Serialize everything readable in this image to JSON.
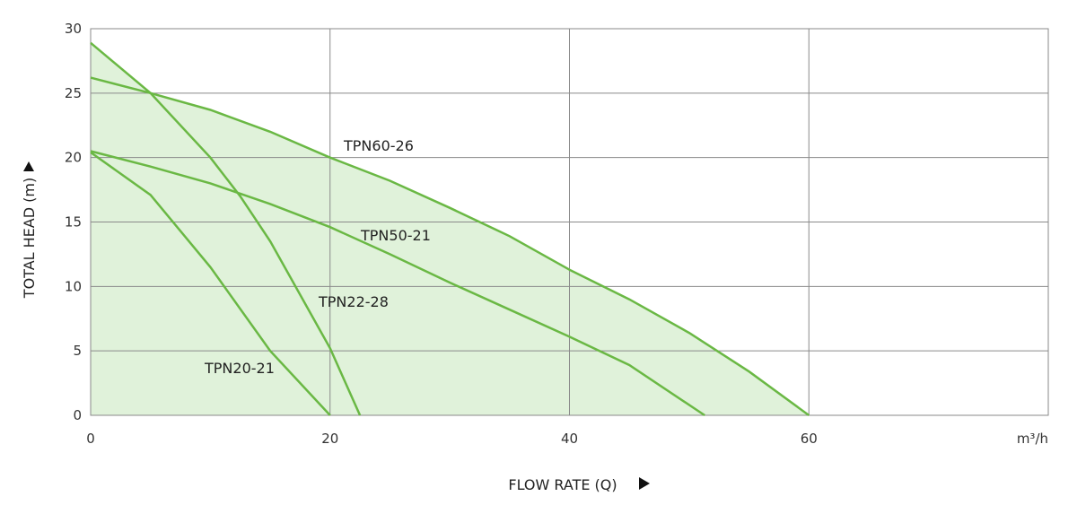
{
  "chart_data": {
    "type": "line",
    "x_label": "FLOW RATE (Q)",
    "y_label": "TOTAL HEAD (m)",
    "x_unit": "m³/h",
    "xlim": [
      0,
      80
    ],
    "xticks": [
      0,
      20,
      40,
      60
    ],
    "ylim": [
      0,
      30
    ],
    "yticks": [
      0,
      5,
      10,
      15,
      20,
      25,
      30
    ],
    "grid": true,
    "fill_color": "#e0f2da",
    "series": [
      {
        "name": "TPN60-26",
        "color": "#6ab844",
        "x": [
          0,
          5,
          10,
          15,
          20,
          25,
          30,
          35,
          40,
          45,
          50,
          55,
          60
        ],
        "values": [
          26.2,
          25,
          23.7,
          22,
          20,
          18.2,
          16.1,
          13.9,
          11.3,
          9,
          6.4,
          3.4,
          0
        ]
      },
      {
        "name": "TPN50-21",
        "color": "#6ab844",
        "x": [
          0,
          5,
          10,
          15,
          20,
          25,
          30,
          35,
          40,
          45,
          51.3
        ],
        "values": [
          20.5,
          19.3,
          18,
          16.4,
          14.6,
          12.5,
          10.3,
          8.2,
          6.1,
          3.9,
          0
        ]
      },
      {
        "name": "TPN22-28",
        "color": "#6ab844",
        "x": [
          0,
          5,
          10,
          12.5,
          15,
          20,
          22.5
        ],
        "values": [
          28.9,
          25,
          20,
          17,
          13.5,
          5.2,
          0
        ]
      },
      {
        "name": "TPN20-21",
        "color": "#6ab844",
        "x": [
          0,
          5,
          10,
          15,
          20
        ],
        "values": [
          20.4,
          17.1,
          11.5,
          5,
          0
        ]
      }
    ]
  }
}
